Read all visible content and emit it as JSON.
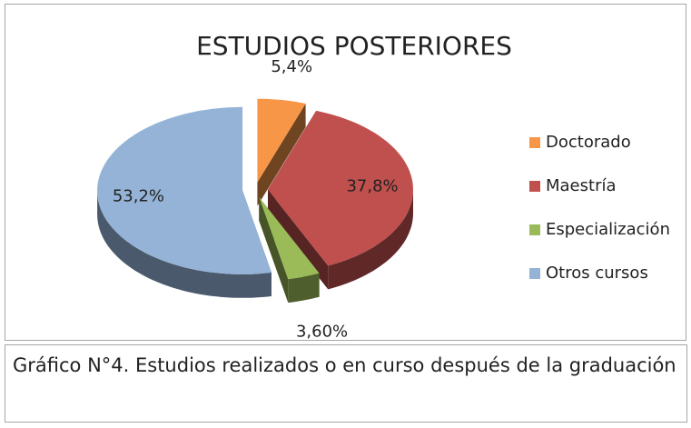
{
  "chart_data": {
    "type": "pie",
    "title": "ESTUDIOS POSTERIORES",
    "categories": [
      "Doctorado",
      "Maestría",
      "Especialización",
      "Otros cursos"
    ],
    "values": [
      5.4,
      37.8,
      3.6,
      53.2
    ],
    "value_labels": [
      "5,4%",
      "37,8%",
      "3,60%",
      "53,2%"
    ],
    "colors": [
      "#f79646",
      "#c0504d",
      "#9bbb59",
      "#95b3d7"
    ],
    "legend": "right"
  },
  "caption": "Gráfico N°4. Estudios realizados o en curso después de la graduación"
}
